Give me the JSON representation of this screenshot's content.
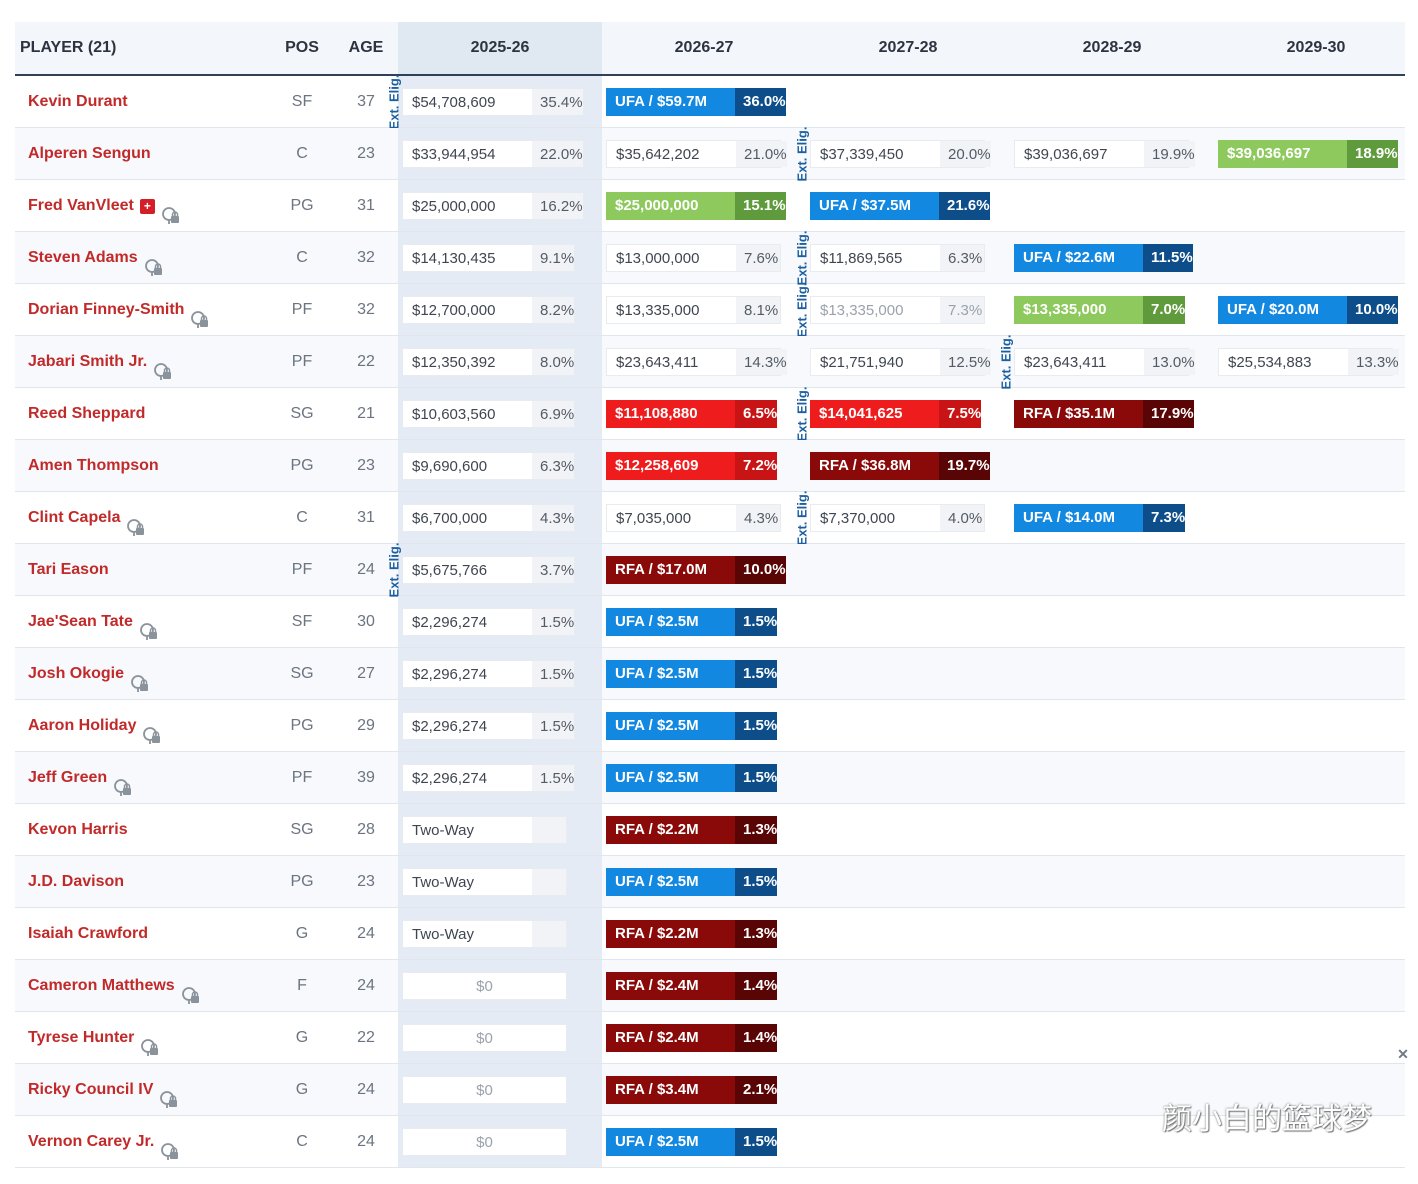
{
  "header": {
    "player": "PLAYER (21)",
    "pos": "POS",
    "age": "AGE",
    "seasons": [
      "2025-26",
      "2026-27",
      "2027-28",
      "2028-29",
      "2029-30"
    ]
  },
  "ext_label": "Ext. Elig.",
  "close_glyph": "✕",
  "watermark": "颜小白的篮球梦",
  "rows": [
    {
      "name": "Kevin Durant",
      "pos": "SF",
      "age": "37",
      "icons": [],
      "cells": [
        {
          "t": "sal",
          "a": "$54,708,609",
          "p": "35.4%"
        },
        {
          "t": "ufa",
          "a": "UFA / $59.7M",
          "p": "36.0%"
        },
        null,
        null,
        null
      ]
    },
    {
      "name": "Alperen Sengun",
      "pos": "C",
      "age": "23",
      "icons": [],
      "cells": [
        {
          "t": "sal",
          "a": "$33,944,954",
          "p": "22.0%"
        },
        {
          "t": "sal",
          "a": "$35,642,202",
          "p": "21.0%"
        },
        {
          "t": "sal",
          "a": "$37,339,450",
          "p": "20.0%"
        },
        {
          "t": "sal",
          "a": "$39,036,697",
          "p": "19.9%"
        },
        {
          "t": "grn",
          "a": "$39,036,697",
          "p": "18.9%"
        }
      ]
    },
    {
      "name": "Fred VanVleet",
      "pos": "PG",
      "age": "31",
      "icons": [
        "medical",
        "no-trade"
      ],
      "cells": [
        {
          "t": "sal",
          "a": "$25,000,000",
          "p": "16.2%"
        },
        {
          "t": "grn",
          "a": "$25,000,000",
          "p": "15.1%"
        },
        {
          "t": "ufa",
          "a": "UFA / $37.5M",
          "p": "21.6%"
        },
        null,
        null
      ]
    },
    {
      "name": "Steven Adams",
      "pos": "C",
      "age": "32",
      "icons": [
        "no-trade"
      ],
      "cells": [
        {
          "t": "sal",
          "a": "$14,130,435",
          "p": "9.1%"
        },
        {
          "t": "sal",
          "a": "$13,000,000",
          "p": "7.6%"
        },
        {
          "t": "sal",
          "a": "$11,869,565",
          "p": "6.3%"
        },
        {
          "t": "ufa",
          "a": "UFA / $22.6M",
          "p": "11.5%"
        },
        null
      ]
    },
    {
      "name": "Dorian Finney-Smith",
      "pos": "PF",
      "age": "32",
      "icons": [
        "no-trade"
      ],
      "cells": [
        {
          "t": "sal",
          "a": "$12,700,000",
          "p": "8.2%"
        },
        {
          "t": "sal",
          "a": "$13,335,000",
          "p": "8.1%"
        },
        {
          "t": "dim",
          "a": "$13,335,000",
          "p": "7.3%"
        },
        {
          "t": "grn",
          "a": "$13,335,000",
          "p": "7.0%"
        },
        {
          "t": "ufa",
          "a": "UFA / $20.0M",
          "p": "10.0%"
        }
      ]
    },
    {
      "name": "Jabari Smith Jr.",
      "pos": "PF",
      "age": "22",
      "icons": [
        "no-trade"
      ],
      "cells": [
        {
          "t": "sal",
          "a": "$12,350,392",
          "p": "8.0%"
        },
        {
          "t": "sal",
          "a": "$23,643,411",
          "p": "14.3%"
        },
        {
          "t": "sal",
          "a": "$21,751,940",
          "p": "12.5%"
        },
        {
          "t": "sal",
          "a": "$23,643,411",
          "p": "13.0%"
        },
        {
          "t": "sal",
          "a": "$25,534,883",
          "p": "13.3%"
        }
      ]
    },
    {
      "name": "Reed Sheppard",
      "pos": "SG",
      "age": "21",
      "icons": [],
      "cells": [
        {
          "t": "sal",
          "a": "$10,603,560",
          "p": "6.9%"
        },
        {
          "t": "red",
          "a": "$11,108,880",
          "p": "6.5%"
        },
        {
          "t": "red",
          "a": "$14,041,625",
          "p": "7.5%"
        },
        {
          "t": "rfa",
          "a": "RFA / $35.1M",
          "p": "17.9%"
        },
        null
      ]
    },
    {
      "name": "Amen Thompson",
      "pos": "PG",
      "age": "23",
      "icons": [],
      "cells": [
        {
          "t": "sal",
          "a": "$9,690,600",
          "p": "6.3%"
        },
        {
          "t": "red",
          "a": "$12,258,609",
          "p": "7.2%"
        },
        {
          "t": "rfa",
          "a": "RFA / $36.8M",
          "p": "19.7%"
        },
        null,
        null
      ]
    },
    {
      "name": "Clint Capela",
      "pos": "C",
      "age": "31",
      "icons": [
        "no-trade"
      ],
      "cells": [
        {
          "t": "sal",
          "a": "$6,700,000",
          "p": "4.3%"
        },
        {
          "t": "sal",
          "a": "$7,035,000",
          "p": "4.3%"
        },
        {
          "t": "sal",
          "a": "$7,370,000",
          "p": "4.0%"
        },
        {
          "t": "ufa",
          "a": "UFA / $14.0M",
          "p": "7.3%"
        },
        null
      ]
    },
    {
      "name": "Tari Eason",
      "pos": "PF",
      "age": "24",
      "icons": [],
      "cells": [
        {
          "t": "sal",
          "a": "$5,675,766",
          "p": "3.7%"
        },
        {
          "t": "rfa",
          "a": "RFA / $17.0M",
          "p": "10.0%"
        },
        null,
        null,
        null
      ]
    },
    {
      "name": "Jae'Sean Tate",
      "pos": "SF",
      "age": "30",
      "icons": [
        "no-trade"
      ],
      "cells": [
        {
          "t": "sal",
          "a": "$2,296,274",
          "p": "1.5%"
        },
        {
          "t": "ufa",
          "a": "UFA / $2.5M",
          "p": "1.5%"
        },
        null,
        null,
        null
      ]
    },
    {
      "name": "Josh Okogie",
      "pos": "SG",
      "age": "27",
      "icons": [
        "no-trade"
      ],
      "cells": [
        {
          "t": "sal",
          "a": "$2,296,274",
          "p": "1.5%"
        },
        {
          "t": "ufa",
          "a": "UFA / $2.5M",
          "p": "1.5%"
        },
        null,
        null,
        null
      ]
    },
    {
      "name": "Aaron Holiday",
      "pos": "PG",
      "age": "29",
      "icons": [
        "no-trade"
      ],
      "cells": [
        {
          "t": "sal",
          "a": "$2,296,274",
          "p": "1.5%"
        },
        {
          "t": "ufa",
          "a": "UFA / $2.5M",
          "p": "1.5%"
        },
        null,
        null,
        null
      ]
    },
    {
      "name": "Jeff Green",
      "pos": "PF",
      "age": "39",
      "icons": [
        "no-trade"
      ],
      "cells": [
        {
          "t": "sal",
          "a": "$2,296,274",
          "p": "1.5%"
        },
        {
          "t": "ufa",
          "a": "UFA / $2.5M",
          "p": "1.5%"
        },
        null,
        null,
        null
      ]
    },
    {
      "name": "Kevon Harris",
      "pos": "SG",
      "age": "28",
      "icons": [],
      "cells": [
        {
          "t": "sal",
          "a": "Two-Way",
          "p": ""
        },
        {
          "t": "rfa",
          "a": "RFA / $2.2M",
          "p": "1.3%"
        },
        null,
        null,
        null
      ]
    },
    {
      "name": "J.D. Davison",
      "pos": "PG",
      "age": "23",
      "icons": [],
      "cells": [
        {
          "t": "sal",
          "a": "Two-Way",
          "p": ""
        },
        {
          "t": "ufa",
          "a": "UFA / $2.5M",
          "p": "1.5%"
        },
        null,
        null,
        null
      ]
    },
    {
      "name": "Isaiah Crawford",
      "pos": "G",
      "age": "24",
      "icons": [],
      "cells": [
        {
          "t": "sal",
          "a": "Two-Way",
          "p": ""
        },
        {
          "t": "rfa",
          "a": "RFA / $2.2M",
          "p": "1.3%"
        },
        null,
        null,
        null
      ]
    },
    {
      "name": "Cameron Matthews",
      "pos": "F",
      "age": "24",
      "icons": [
        "no-trade"
      ],
      "cells": [
        {
          "t": "zero",
          "a": "$0",
          "p": ""
        },
        {
          "t": "rfa",
          "a": "RFA / $2.4M",
          "p": "1.4%"
        },
        null,
        null,
        null
      ]
    },
    {
      "name": "Tyrese Hunter",
      "pos": "G",
      "age": "22",
      "icons": [
        "no-trade"
      ],
      "cells": [
        {
          "t": "zero",
          "a": "$0",
          "p": ""
        },
        {
          "t": "rfa",
          "a": "RFA / $2.4M",
          "p": "1.4%"
        },
        null,
        null,
        null
      ]
    },
    {
      "name": "Ricky Council IV",
      "pos": "G",
      "age": "24",
      "icons": [
        "no-trade"
      ],
      "cells": [
        {
          "t": "zero",
          "a": "$0",
          "p": ""
        },
        {
          "t": "rfa",
          "a": "RFA / $3.4M",
          "p": "2.1%"
        },
        null,
        null,
        null
      ]
    },
    {
      "name": "Vernon Carey Jr.",
      "pos": "C",
      "age": "24",
      "icons": [
        "no-trade"
      ],
      "cells": [
        {
          "t": "zero",
          "a": "$0",
          "p": ""
        },
        {
          "t": "ufa",
          "a": "UFA / $2.5M",
          "p": "1.5%"
        },
        null,
        null,
        null
      ]
    }
  ],
  "ext_marks": [
    {
      "row": 0,
      "season": 0
    },
    {
      "row": 1,
      "season": 2
    },
    {
      "row": 3,
      "season": 2
    },
    {
      "row": 4,
      "season": 2
    },
    {
      "row": 5,
      "season": 3
    },
    {
      "row": 6,
      "season": 2
    },
    {
      "row": 8,
      "season": 2
    },
    {
      "row": 9,
      "season": 0
    }
  ]
}
